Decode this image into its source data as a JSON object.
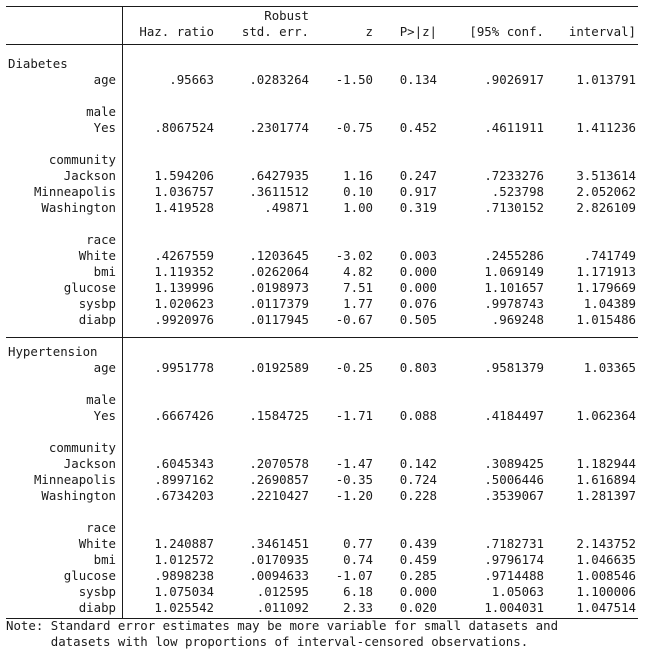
{
  "header": {
    "line1": [
      "",
      "",
      "Robust",
      "",
      "",
      "",
      ""
    ],
    "line2": [
      "",
      "Haz. ratio",
      "std. err.",
      "z",
      "P>|z|",
      "[95% conf.",
      "interval]"
    ]
  },
  "sections": [
    {
      "name": "Diabetes",
      "blocks": [
        {
          "rows": [
            {
              "label": "age",
              "values": [
                ".95663",
                ".0283264",
                "-1.50",
                "0.134",
                ".9026917",
                "1.013791"
              ]
            }
          ]
        },
        {
          "heading": "male",
          "rows": [
            {
              "label": "Yes",
              "values": [
                ".8067524",
                ".2301774",
                "-0.75",
                "0.452",
                ".4611911",
                "1.411236"
              ]
            }
          ]
        },
        {
          "heading": "community",
          "rows": [
            {
              "label": "Jackson",
              "values": [
                "1.594206",
                ".6427935",
                "1.16",
                "0.247",
                ".7233276",
                "3.513614"
              ]
            },
            {
              "label": "Minneapolis",
              "values": [
                "1.036757",
                ".3611512",
                "0.10",
                "0.917",
                ".523798",
                "2.052062"
              ]
            },
            {
              "label": "Washington",
              "values": [
                "1.419528",
                ".49871",
                "1.00",
                "0.319",
                ".7130152",
                "2.826109"
              ]
            }
          ]
        },
        {
          "heading": "race",
          "rows": [
            {
              "label": "White",
              "values": [
                ".4267559",
                ".1203645",
                "-3.02",
                "0.003",
                ".2455286",
                ".741749"
              ]
            },
            {
              "label": "bmi",
              "values": [
                "1.119352",
                ".0262064",
                "4.82",
                "0.000",
                "1.069149",
                "1.171913"
              ]
            },
            {
              "label": "glucose",
              "values": [
                "1.139996",
                ".0198973",
                "7.51",
                "0.000",
                "1.101657",
                "1.179669"
              ]
            },
            {
              "label": "sysbp",
              "values": [
                "1.020623",
                ".0117379",
                "1.77",
                "0.076",
                ".9978743",
                "1.04389"
              ]
            },
            {
              "label": "diabp",
              "values": [
                ".9920976",
                ".0117945",
                "-0.67",
                "0.505",
                ".969248",
                "1.015486"
              ]
            }
          ]
        }
      ]
    },
    {
      "name": "Hypertension",
      "blocks": [
        {
          "rows": [
            {
              "label": "age",
              "values": [
                ".9951778",
                ".0192589",
                "-0.25",
                "0.803",
                ".9581379",
                "1.03365"
              ]
            }
          ]
        },
        {
          "heading": "male",
          "rows": [
            {
              "label": "Yes",
              "values": [
                ".6667426",
                ".1584725",
                "-1.71",
                "0.088",
                ".4184497",
                "1.062364"
              ]
            }
          ]
        },
        {
          "heading": "community",
          "rows": [
            {
              "label": "Jackson",
              "values": [
                ".6045343",
                ".2070578",
                "-1.47",
                "0.142",
                ".3089425",
                "1.182944"
              ]
            },
            {
              "label": "Minneapolis",
              "values": [
                ".8997162",
                ".2690857",
                "-0.35",
                "0.724",
                ".5006446",
                "1.616894"
              ]
            },
            {
              "label": "Washington",
              "values": [
                ".6734203",
                ".2210427",
                "-1.20",
                "0.228",
                ".3539067",
                "1.281397"
              ]
            }
          ]
        },
        {
          "heading": "race",
          "rows": [
            {
              "label": "White",
              "values": [
                "1.240887",
                ".3461451",
                "0.77",
                "0.439",
                ".7182731",
                "2.143752"
              ]
            },
            {
              "label": "bmi",
              "values": [
                "1.012572",
                ".0170935",
                "0.74",
                "0.459",
                ".9796174",
                "1.046635"
              ]
            },
            {
              "label": "glucose",
              "values": [
                ".9898238",
                ".0094633",
                "-1.07",
                "0.285",
                ".9714488",
                "1.008546"
              ]
            },
            {
              "label": "sysbp",
              "values": [
                "1.075034",
                ".012595",
                "6.18",
                "0.000",
                "1.05063",
                "1.100006"
              ]
            },
            {
              "label": "diabp",
              "values": [
                "1.025542",
                ".011092",
                "2.33",
                "0.020",
                "1.004031",
                "1.047514"
              ]
            }
          ]
        }
      ]
    }
  ],
  "note": [
    "Note: Standard error estimates may be more variable for small datasets and",
    "      datasets with low proportions of interval-censored observations."
  ]
}
